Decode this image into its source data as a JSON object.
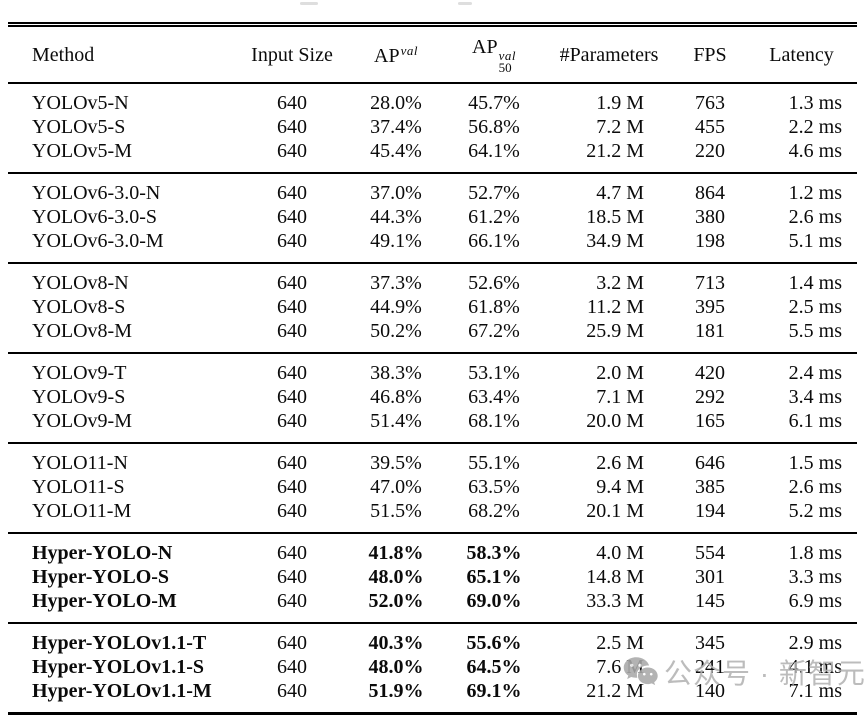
{
  "table": {
    "columns": [
      {
        "name": "method",
        "label": "Method"
      },
      {
        "name": "input-size",
        "label": "Input Size"
      },
      {
        "name": "ap-val",
        "base": "AP",
        "sup": "val"
      },
      {
        "name": "ap50-val",
        "base": "AP",
        "sup": "val",
        "sub": "50"
      },
      {
        "name": "parameters",
        "label": "#Parameters"
      },
      {
        "name": "fps",
        "label": "FPS"
      },
      {
        "name": "latency",
        "label": "Latency"
      }
    ],
    "bold_cols": [
      0,
      2,
      3
    ],
    "groups": [
      {
        "bold": false,
        "rows": [
          [
            "YOLOv5-N",
            "640",
            "28.0%",
            "45.7%",
            "1.9 M",
            "763",
            "1.3 ms"
          ],
          [
            "YOLOv5-S",
            "640",
            "37.4%",
            "56.8%",
            "7.2 M",
            "455",
            "2.2 ms"
          ],
          [
            "YOLOv5-M",
            "640",
            "45.4%",
            "64.1%",
            "21.2 M",
            "220",
            "4.6 ms"
          ]
        ]
      },
      {
        "bold": false,
        "rows": [
          [
            "YOLOv6-3.0-N",
            "640",
            "37.0%",
            "52.7%",
            "4.7 M",
            "864",
            "1.2 ms"
          ],
          [
            "YOLOv6-3.0-S",
            "640",
            "44.3%",
            "61.2%",
            "18.5 M",
            "380",
            "2.6 ms"
          ],
          [
            "YOLOv6-3.0-M",
            "640",
            "49.1%",
            "66.1%",
            "34.9 M",
            "198",
            "5.1 ms"
          ]
        ]
      },
      {
        "bold": false,
        "rows": [
          [
            "YOLOv8-N",
            "640",
            "37.3%",
            "52.6%",
            "3.2 M",
            "713",
            "1.4 ms"
          ],
          [
            "YOLOv8-S",
            "640",
            "44.9%",
            "61.8%",
            "11.2 M",
            "395",
            "2.5 ms"
          ],
          [
            "YOLOv8-M",
            "640",
            "50.2%",
            "67.2%",
            "25.9 M",
            "181",
            "5.5 ms"
          ]
        ]
      },
      {
        "bold": false,
        "rows": [
          [
            "YOLOv9-T",
            "640",
            "38.3%",
            "53.1%",
            "2.0 M",
            "420",
            "2.4 ms"
          ],
          [
            "YOLOv9-S",
            "640",
            "46.8%",
            "63.4%",
            "7.1 M",
            "292",
            "3.4 ms"
          ],
          [
            "YOLOv9-M",
            "640",
            "51.4%",
            "68.1%",
            "20.0 M",
            "165",
            "6.1 ms"
          ]
        ]
      },
      {
        "bold": false,
        "rows": [
          [
            "YOLO11-N",
            "640",
            "39.5%",
            "55.1%",
            "2.6 M",
            "646",
            "1.5 ms"
          ],
          [
            "YOLO11-S",
            "640",
            "47.0%",
            "63.5%",
            "9.4 M",
            "385",
            "2.6 ms"
          ],
          [
            "YOLO11-M",
            "640",
            "51.5%",
            "68.2%",
            "20.1 M",
            "194",
            "5.2 ms"
          ]
        ]
      },
      {
        "bold": true,
        "rows": [
          [
            "Hyper-YOLO-N",
            "640",
            "41.8%",
            "58.3%",
            "4.0 M",
            "554",
            "1.8 ms"
          ],
          [
            "Hyper-YOLO-S",
            "640",
            "48.0%",
            "65.1%",
            "14.8 M",
            "301",
            "3.3 ms"
          ],
          [
            "Hyper-YOLO-M",
            "640",
            "52.0%",
            "69.0%",
            "33.3 M",
            "145",
            "6.9 ms"
          ]
        ]
      },
      {
        "bold": true,
        "rows": [
          [
            "Hyper-YOLOv1.1-T",
            "640",
            "40.3%",
            "55.6%",
            "2.5 M",
            "345",
            "2.9 ms"
          ],
          [
            "Hyper-YOLOv1.1-S",
            "640",
            "48.0%",
            "64.5%",
            "7.6 M",
            "241",
            "4.1 ms"
          ],
          [
            "Hyper-YOLOv1.1-M",
            "640",
            "51.9%",
            "69.1%",
            "21.2 M",
            "140",
            "7.1 ms"
          ]
        ]
      }
    ]
  },
  "watermark": {
    "icon": "wechat-icon",
    "prefix": "公众号",
    "separator": "·",
    "brand": "新智元",
    "color": "#b3b3b3"
  }
}
